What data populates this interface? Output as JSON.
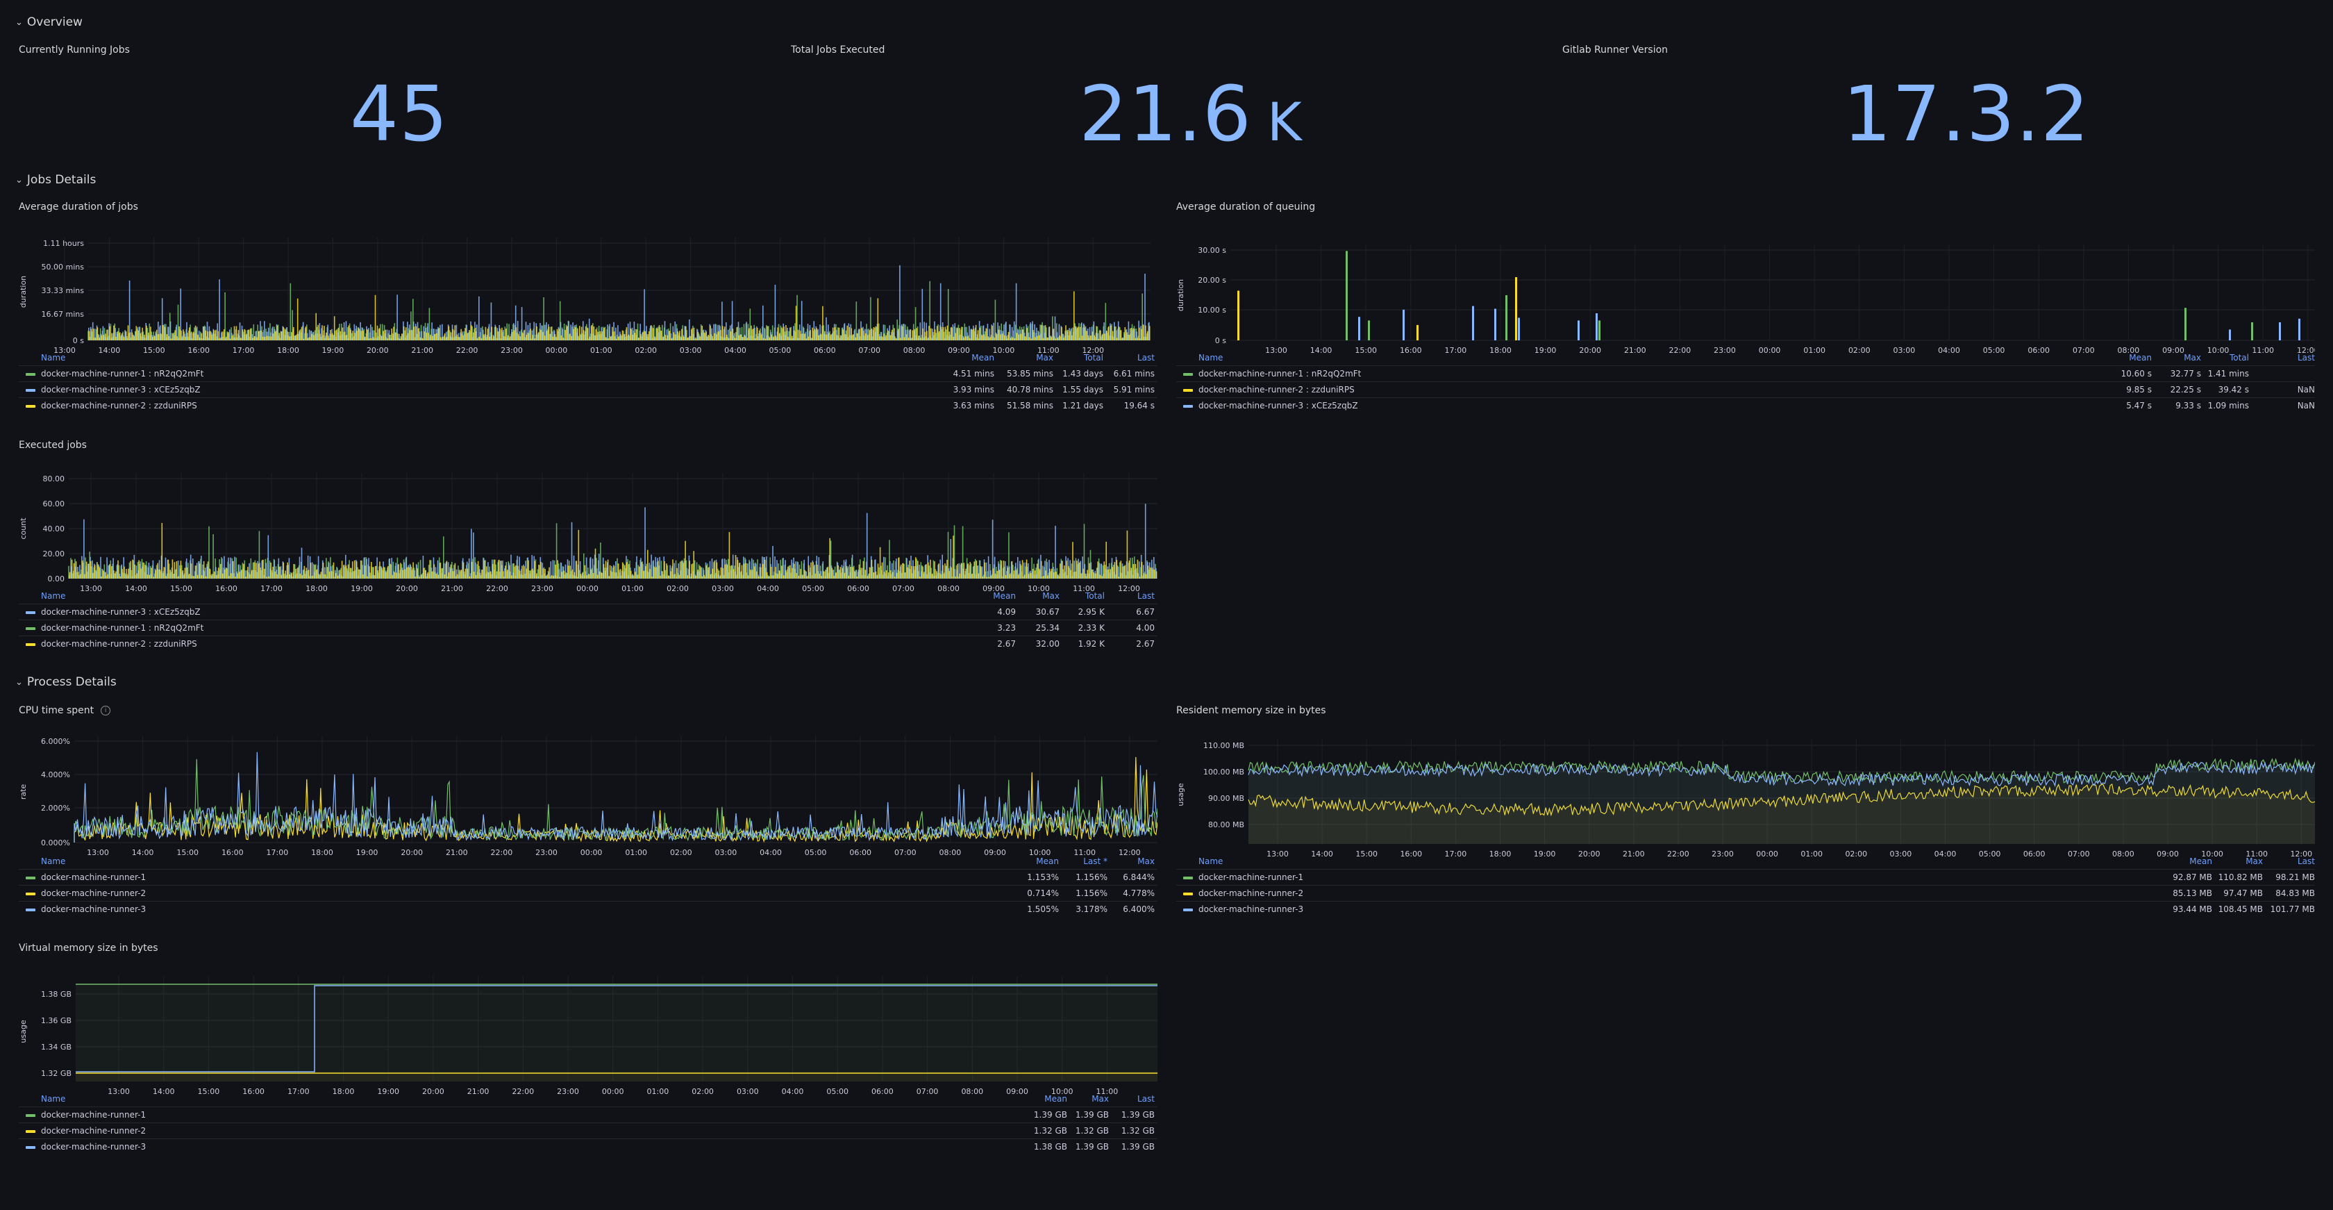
{
  "rows": {
    "overview": "Overview",
    "jobs": "Jobs Details",
    "process": "Process Details"
  },
  "colors": {
    "green": "#73bf69",
    "blue": "#8ab8ff",
    "yellow": "#fade2a",
    "bg": "#111217"
  },
  "stats": [
    {
      "title": "Currently Running Jobs",
      "value": "45",
      "unit": ""
    },
    {
      "title": "Total Jobs Executed",
      "value": "21.6",
      "unit": "K"
    },
    {
      "title": "Gitlab Runner Version",
      "value": "17.3.2",
      "unit": ""
    }
  ],
  "time_ticks": [
    "13:00",
    "14:00",
    "15:00",
    "16:00",
    "17:00",
    "18:00",
    "19:00",
    "20:00",
    "21:00",
    "22:00",
    "23:00",
    "00:00",
    "01:00",
    "02:00",
    "03:00",
    "04:00",
    "05:00",
    "06:00",
    "07:00",
    "08:00",
    "09:00",
    "10:00",
    "11:00",
    "12:00"
  ],
  "panels": {
    "avg_jobs": {
      "title": "Average duration of jobs",
      "ylabel": "duration",
      "yticks": [
        "1.11 hours",
        "50.00 mins",
        "33.33 mins",
        "16.67 mins",
        "0 s"
      ],
      "cols": [
        "Name",
        "Mean",
        "Max",
        "Total",
        "Last"
      ],
      "rows": [
        {
          "color": "green",
          "name": "docker-machine-runner-1 : nR2qQ2mFt",
          "vals": [
            "4.51 mins",
            "53.85 mins",
            "1.43 days",
            "6.61 mins"
          ]
        },
        {
          "color": "blue",
          "name": "docker-machine-runner-3 : xCEz5zqbZ",
          "vals": [
            "3.93 mins",
            "40.78 mins",
            "1.55 days",
            "5.91 mins"
          ]
        },
        {
          "color": "yellow",
          "name": "docker-machine-runner-2 : zzduniRPS",
          "vals": [
            "3.63 mins",
            "51.58 mins",
            "1.21 days",
            "19.64 s"
          ]
        }
      ]
    },
    "avg_queue": {
      "title": "Average duration of queuing",
      "ylabel": "duration",
      "yticks": [
        "30.00 s",
        "20.00 s",
        "10.00 s",
        "0 s"
      ],
      "cols": [
        "Name",
        "Mean",
        "Max",
        "Total",
        "Last"
      ],
      "rows": [
        {
          "color": "green",
          "name": "docker-machine-runner-1 : nR2qQ2mFt",
          "vals": [
            "10.60 s",
            "32.77 s",
            "1.41 mins",
            ""
          ]
        },
        {
          "color": "yellow",
          "name": "docker-machine-runner-2 : zzduniRPS",
          "vals": [
            "9.85 s",
            "22.25 s",
            "39.42 s",
            "NaN"
          ]
        },
        {
          "color": "blue",
          "name": "docker-machine-runner-3 : xCEz5zqbZ",
          "vals": [
            "5.47 s",
            "9.33 s",
            "1.09 mins",
            "NaN"
          ]
        }
      ]
    },
    "executed": {
      "title": "Executed jobs",
      "ylabel": "count",
      "yticks": [
        "80.00",
        "60.00",
        "40.00",
        "20.00",
        "0.00"
      ],
      "cols": [
        "Name",
        "Mean",
        "Max",
        "Total",
        "Last"
      ],
      "rows": [
        {
          "color": "blue",
          "name": "docker-machine-runner-3 : xCEz5zqbZ",
          "vals": [
            "4.09",
            "30.67",
            "2.95 K",
            "6.67"
          ]
        },
        {
          "color": "green",
          "name": "docker-machine-runner-1 : nR2qQ2mFt",
          "vals": [
            "3.23",
            "25.34",
            "2.33 K",
            "4.00"
          ]
        },
        {
          "color": "yellow",
          "name": "docker-machine-runner-2 : zzduniRPS",
          "vals": [
            "2.67",
            "32.00",
            "1.92 K",
            "2.67"
          ]
        }
      ]
    },
    "cpu": {
      "title": "CPU time spent",
      "info_icon": "info-icon",
      "ylabel": "rate",
      "yticks": [
        "6.000%",
        "4.000%",
        "2.000%",
        "0.000%"
      ],
      "cols": [
        "Name",
        "Mean",
        "Last *",
        "Max"
      ],
      "rows": [
        {
          "color": "green",
          "name": "docker-machine-runner-1",
          "vals": [
            "1.153%",
            "1.156%",
            "6.844%"
          ]
        },
        {
          "color": "yellow",
          "name": "docker-machine-runner-2",
          "vals": [
            "0.714%",
            "1.156%",
            "4.778%"
          ]
        },
        {
          "color": "blue",
          "name": "docker-machine-runner-3",
          "vals": [
            "1.505%",
            "3.178%",
            "6.400%"
          ]
        }
      ]
    },
    "resident": {
      "title": "Resident memory size in bytes",
      "ylabel": "usage",
      "yticks": [
        "110.00 MB",
        "100.00 MB",
        "90.00 MB",
        "80.00 MB"
      ],
      "cols": [
        "Name",
        "Mean",
        "Max",
        "Last"
      ],
      "rows": [
        {
          "color": "green",
          "name": "docker-machine-runner-1",
          "vals": [
            "92.87 MB",
            "110.82 MB",
            "98.21 MB"
          ]
        },
        {
          "color": "yellow",
          "name": "docker-machine-runner-2",
          "vals": [
            "85.13 MB",
            "97.47 MB",
            "84.83 MB"
          ]
        },
        {
          "color": "blue",
          "name": "docker-machine-runner-3",
          "vals": [
            "93.44 MB",
            "108.45 MB",
            "101.77 MB"
          ]
        }
      ]
    },
    "virtual": {
      "title": "Virtual memory size in bytes",
      "ylabel": "usage",
      "yticks": [
        "1.38 GB",
        "1.36 GB",
        "1.34 GB",
        "1.32 GB"
      ],
      "cols": [
        "Name",
        "Mean",
        "Max",
        "Last"
      ],
      "rows": [
        {
          "color": "green",
          "name": "docker-machine-runner-1",
          "vals": [
            "1.39 GB",
            "1.39 GB",
            "1.39 GB"
          ]
        },
        {
          "color": "yellow",
          "name": "docker-machine-runner-2",
          "vals": [
            "1.32 GB",
            "1.32 GB",
            "1.32 GB"
          ]
        },
        {
          "color": "blue",
          "name": "docker-machine-runner-3",
          "vals": [
            "1.38 GB",
            "1.39 GB",
            "1.39 GB"
          ]
        }
      ]
    }
  }
}
